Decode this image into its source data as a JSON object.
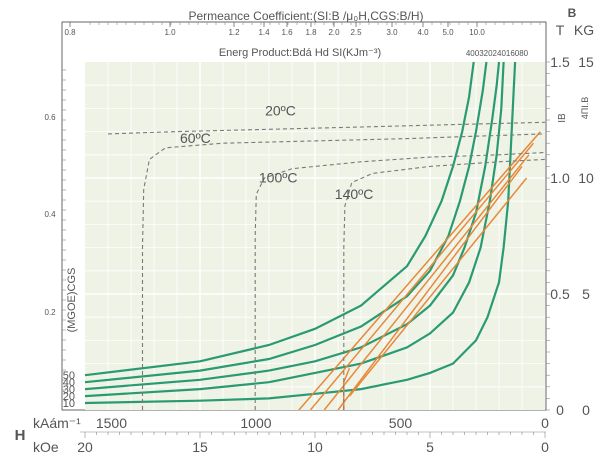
{
  "chart_data": {
    "type": "line",
    "title": "Permeance Coefficient:(SI:B /μ₀H,CGS:B/H)",
    "subtitle": "Energ Product:Bdá Hd  SI(KJm⁻³)",
    "code": "40032024016080",
    "permeance_ticks": [
      "0.8",
      "1.0",
      "1.2",
      "1.4",
      "1.6",
      "1.8",
      "2.0",
      "2.5",
      "3.0",
      "4.0",
      "5.0",
      "10.0"
    ],
    "top_label": "B",
    "right_unit_T": "T",
    "right_unit_KG": "KG",
    "right_axis_T_label": "IB",
    "right_axis_KG_label": "4ΠI.B",
    "right_ticks_T": [
      "0",
      "0.5",
      "1.0",
      "1.5"
    ],
    "right_ticks_KG": [
      "0",
      "5",
      "10",
      "15"
    ],
    "energy_axis_label": "(MGOE)CGS",
    "energy_ticks": [
      "0.2",
      "0.4",
      "0.6"
    ],
    "energy_curve_labels": [
      "10",
      "20",
      "30",
      "40",
      "50"
    ],
    "h_label": "H",
    "x_unit_si": "kAám⁻¹",
    "x_unit_cgs": "kOe",
    "x_ticks_si": [
      "1500",
      "1000",
      "500",
      "0"
    ],
    "x_ticks_cgs": [
      "20",
      "15",
      "10",
      "5",
      "0"
    ],
    "xlim_kOe": [
      20,
      0
    ],
    "ylim_T": [
      0,
      1.5
    ],
    "energy_curves": [
      {
        "mgoe": 10,
        "points": [
          [
            20,
            0.03
          ],
          [
            15,
            0.04
          ],
          [
            12,
            0.05
          ],
          [
            10,
            0.07
          ],
          [
            8,
            0.09
          ],
          [
            6,
            0.13
          ],
          [
            5,
            0.16
          ],
          [
            4,
            0.2
          ],
          [
            3,
            0.3
          ],
          [
            2.5,
            0.4
          ],
          [
            2,
            0.55
          ],
          [
            1.8,
            0.7
          ],
          [
            1.6,
            0.9
          ],
          [
            1.5,
            1.1
          ],
          [
            1.4,
            1.3
          ],
          [
            1.3,
            1.5
          ]
        ]
      },
      {
        "mgoe": 20,
        "points": [
          [
            20,
            0.06
          ],
          [
            15,
            0.09
          ],
          [
            12,
            0.12
          ],
          [
            10,
            0.16
          ],
          [
            8,
            0.2
          ],
          [
            6,
            0.27
          ],
          [
            5,
            0.33
          ],
          [
            4,
            0.42
          ],
          [
            3.3,
            0.55
          ],
          [
            2.8,
            0.7
          ],
          [
            2.4,
            0.9
          ],
          [
            2.1,
            1.1
          ],
          [
            1.9,
            1.3
          ],
          [
            1.8,
            1.5
          ]
        ]
      },
      {
        "mgoe": 30,
        "points": [
          [
            20,
            0.09
          ],
          [
            15,
            0.13
          ],
          [
            12,
            0.17
          ],
          [
            10,
            0.21
          ],
          [
            8,
            0.27
          ],
          [
            6,
            0.37
          ],
          [
            5,
            0.45
          ],
          [
            4,
            0.58
          ],
          [
            3.5,
            0.7
          ],
          [
            3,
            0.85
          ],
          [
            2.6,
            1.05
          ],
          [
            2.3,
            1.25
          ],
          [
            2.1,
            1.4
          ],
          [
            2.0,
            1.5
          ]
        ]
      },
      {
        "mgoe": 40,
        "points": [
          [
            20,
            0.12
          ],
          [
            15,
            0.17
          ],
          [
            12,
            0.22
          ],
          [
            10,
            0.28
          ],
          [
            8,
            0.36
          ],
          [
            6,
            0.49
          ],
          [
            5,
            0.6
          ],
          [
            4.2,
            0.75
          ],
          [
            3.7,
            0.9
          ],
          [
            3.3,
            1.05
          ],
          [
            3,
            1.2
          ],
          [
            2.7,
            1.38
          ],
          [
            2.55,
            1.5
          ]
        ]
      },
      {
        "mgoe": 50,
        "points": [
          [
            20,
            0.15
          ],
          [
            15,
            0.21
          ],
          [
            12,
            0.28
          ],
          [
            10,
            0.35
          ],
          [
            8,
            0.45
          ],
          [
            6,
            0.62
          ],
          [
            5.2,
            0.75
          ],
          [
            4.5,
            0.9
          ],
          [
            4,
            1.05
          ],
          [
            3.6,
            1.2
          ],
          [
            3.3,
            1.35
          ],
          [
            3.1,
            1.5
          ]
        ]
      }
    ],
    "demag_curves": [
      {
        "temperature": "20ºC",
        "label_at": [
          11.5,
          1.27
        ],
        "points": [
          [
            19,
            1.19
          ],
          [
            16,
            1.2
          ],
          [
            12,
            1.21
          ],
          [
            8,
            1.22
          ],
          [
            4,
            1.23
          ],
          [
            0,
            1.24
          ]
        ]
      },
      {
        "temperature": "60ºC",
        "label_at": [
          15.2,
          1.15
        ],
        "points": [
          [
            17.5,
            0
          ],
          [
            17.5,
            0.25
          ],
          [
            17.5,
            0.7
          ],
          [
            17.45,
            0.95
          ],
          [
            17.2,
            1.08
          ],
          [
            16.5,
            1.13
          ],
          [
            14,
            1.15
          ],
          [
            10,
            1.16
          ],
          [
            6,
            1.17
          ],
          [
            3,
            1.18
          ],
          [
            0,
            1.19
          ]
        ]
      },
      {
        "temperature": "100ºC",
        "label_at": [
          11.6,
          0.98
        ],
        "points": [
          [
            12.6,
            0
          ],
          [
            12.6,
            0.3
          ],
          [
            12.6,
            0.75
          ],
          [
            12.55,
            0.93
          ],
          [
            12.2,
            1.0
          ],
          [
            11,
            1.04
          ],
          [
            8,
            1.07
          ],
          [
            5,
            1.09
          ],
          [
            2,
            1.1
          ],
          [
            0,
            1.11
          ]
        ]
      },
      {
        "temperature": "140ºC",
        "label_at": [
          8.3,
          0.91
        ],
        "points": [
          [
            8.75,
            0
          ],
          [
            8.75,
            0.3
          ],
          [
            8.75,
            0.7
          ],
          [
            8.7,
            0.88
          ],
          [
            8.4,
            0.98
          ],
          [
            7.5,
            1.02
          ],
          [
            5,
            1.05
          ],
          [
            2,
            1.07
          ],
          [
            0,
            1.08
          ]
        ]
      }
    ],
    "intrinsic_lines": [
      {
        "points": [
          [
            10.7,
            0
          ],
          [
            0.2,
            1.2
          ]
        ]
      },
      {
        "points": [
          [
            10.2,
            0
          ],
          [
            0.5,
            1.15
          ]
        ]
      },
      {
        "points": [
          [
            9.6,
            0
          ],
          [
            0.7,
            1.1
          ]
        ]
      },
      {
        "points": [
          [
            9.0,
            0
          ],
          [
            1.0,
            1.05
          ]
        ]
      },
      {
        "points": [
          [
            8.5,
            0.06
          ],
          [
            0.8,
            1.0
          ]
        ]
      }
    ],
    "colors": {
      "energy_curves": "#2a9a72",
      "demag_curves": "#7a7a7a",
      "intrinsic_lines": "#e8883a",
      "plot_bg": "#eef3e6",
      "grid": "#ffffff",
      "axis_text": "#555555"
    }
  }
}
